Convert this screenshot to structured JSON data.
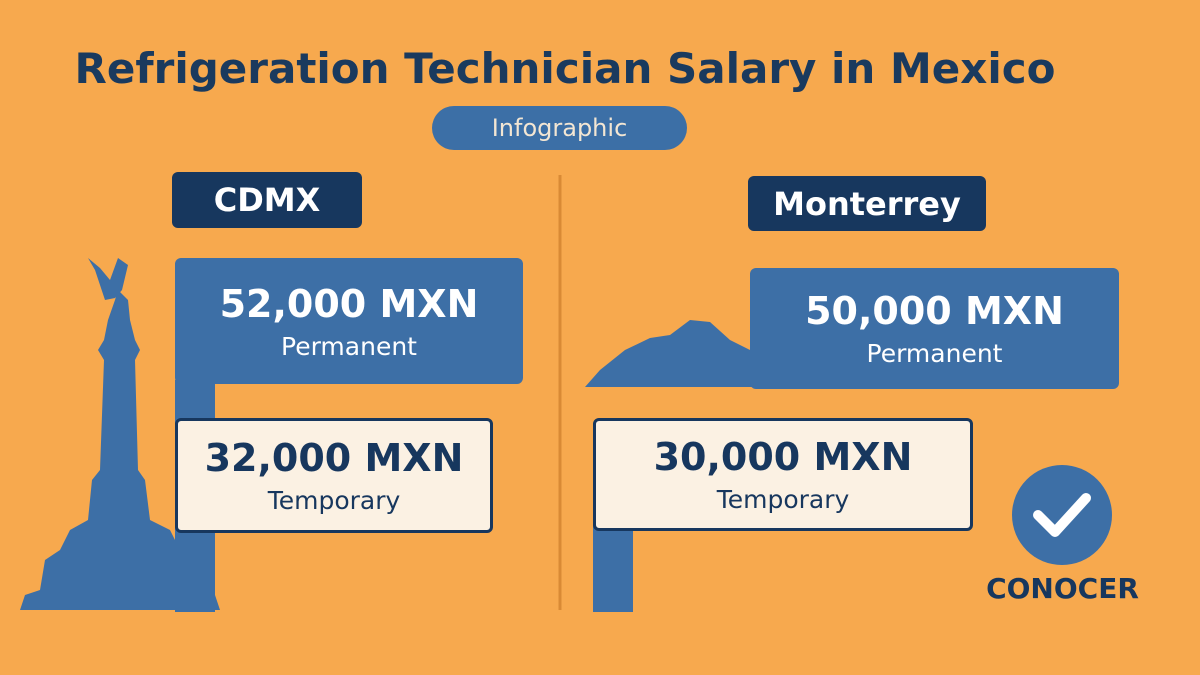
{
  "header": {
    "title": "Refrigeration Technician Salary in Mexico",
    "subtitle": "Infographic"
  },
  "cities": [
    {
      "name": "CDMX",
      "permanent": {
        "amount": "52,000 MXN",
        "label": "Permanent"
      },
      "temporary": {
        "amount": "32,000 MXN",
        "label": "Temporary"
      }
    },
    {
      "name": "Monterrey",
      "permanent": {
        "amount": "50,000 MXN",
        "label": "Permanent"
      },
      "temporary": {
        "amount": "30,000 MXN",
        "label": "Temporary"
      }
    }
  ],
  "badge": {
    "label": "CONOCER"
  }
}
